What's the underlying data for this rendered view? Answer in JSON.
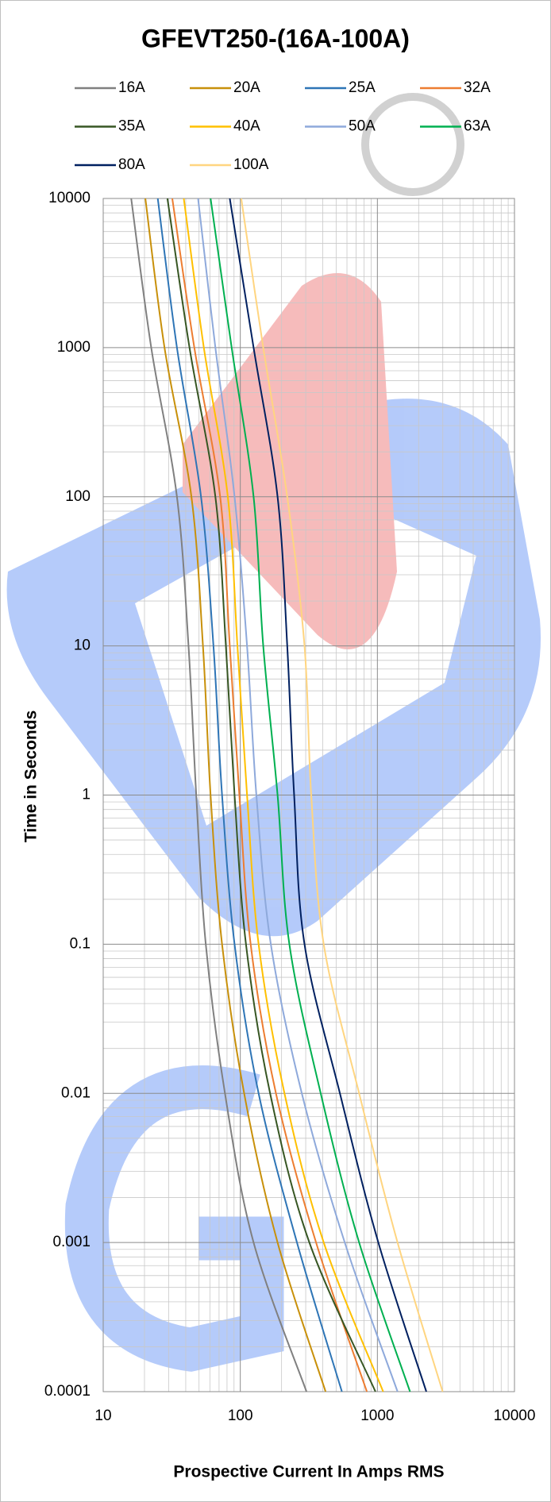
{
  "chart_data": {
    "type": "line",
    "title": "GFEVT250-(16A-100A)",
    "x_label": "Prospective Current In Amps RMS",
    "y_label": "Time in Seconds",
    "xscale": "log",
    "yscale": "log",
    "grid": true,
    "xlim": [
      10,
      10000
    ],
    "xticks": [
      10,
      100,
      1000,
      10000
    ],
    "ylim": [
      0.0001,
      10000
    ],
    "yticks": [
      0.0001,
      0.001,
      0.01,
      0.1,
      1,
      10,
      100,
      1000,
      10000
    ],
    "legend": "top",
    "series": [
      {
        "name": "16A",
        "color": "#808080",
        "x": [
          16,
          22.4,
          34.5,
          41.9,
          47.7,
          56,
          77.3,
          125,
          304
        ],
        "values": [
          10000,
          1000,
          100,
          10,
          1,
          0.1,
          0.01,
          0.001,
          0.0001
        ]
      },
      {
        "name": "20A",
        "color": "#c8900a",
        "x": [
          20.3,
          28,
          44,
          53.4,
          60.7,
          73.6,
          106.7,
          187,
          419
        ],
        "values": [
          10000,
          1000,
          100,
          10,
          1,
          0.1,
          0.01,
          0.001,
          0.0001
        ]
      },
      {
        "name": "25A",
        "color": "#2e75b6",
        "x": [
          25,
          34.5,
          51.7,
          63.7,
          73.6,
          90.8,
          136,
          259,
          551
        ],
        "values": [
          10000,
          1000,
          100,
          10,
          1,
          0.1,
          0.01,
          0.001,
          0.0001
        ]
      },
      {
        "name": "32A",
        "color": "#ed7d31",
        "x": [
          31.9,
          46.2,
          71.3,
          83.8,
          98.4,
          119,
          182,
          357,
          838
        ],
        "values": [
          10000,
          1000,
          100,
          10,
          1,
          0.1,
          0.01,
          0.001,
          0.0001
        ]
      },
      {
        "name": "35A",
        "color": "#375623",
        "x": [
          29.4,
          42.6,
          65.8,
          78.5,
          90.8,
          110,
          165,
          319,
          968
        ],
        "values": [
          10000,
          1000,
          100,
          10,
          1,
          0.1,
          0.01,
          0.001,
          0.0001
        ]
      },
      {
        "name": "40A",
        "color": "#ffc000",
        "x": [
          38.7,
          54.2,
          81.1,
          95.3,
          112,
          136,
          210,
          406,
          1102
        ],
        "values": [
          10000,
          1000,
          100,
          10,
          1,
          0.1,
          0.01,
          0.001,
          0.0001
        ]
      },
      {
        "name": "50A",
        "color": "#8ea9db",
        "x": [
          49.2,
          65.8,
          90.8,
          112,
          131,
          167,
          281,
          578,
          1403
        ],
        "values": [
          10000,
          1000,
          100,
          10,
          1,
          0.1,
          0.01,
          0.001,
          0.0001
        ]
      },
      {
        "name": "63A",
        "color": "#00b050",
        "x": [
          60.7,
          86.5,
          125,
          147,
          187,
          228,
          386,
          736,
          1730
        ],
        "values": [
          10000,
          1000,
          100,
          10,
          1,
          0.1,
          0.01,
          0.001,
          0.0001
        ]
      },
      {
        "name": "80A",
        "color": "#002060",
        "x": [
          83.8,
          125,
          187,
          220,
          247,
          294,
          533,
          1016,
          2275
        ],
        "values": [
          10000,
          1000,
          100,
          10,
          1,
          0.1,
          0.01,
          0.001,
          0.0001
        ]
      },
      {
        "name": "100A",
        "color": "#ffd580",
        "x": [
          101.6,
          147,
          220,
          294,
          329,
          406,
          736,
          1403,
          2992
        ],
        "values": [
          10000,
          1000,
          100,
          10,
          1,
          0.1,
          0.01,
          0.001,
          0.0001
        ]
      }
    ]
  }
}
